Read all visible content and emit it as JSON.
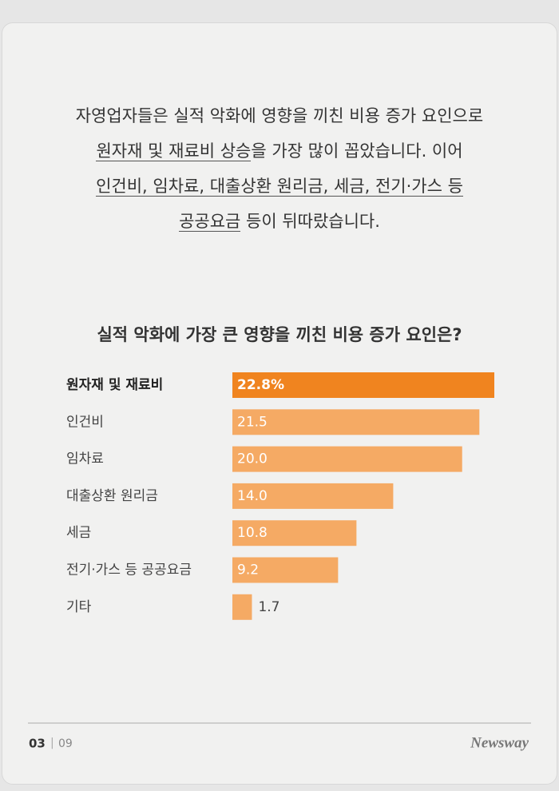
{
  "intro": [
    [
      {
        "text": "자영업자들은 실적 악화에 영향을 끼친 비용 증가 요인으로",
        "underline": false
      }
    ],
    [
      {
        "text": "원자재 및 재료비 상승",
        "underline": true
      },
      {
        "text": "을 가장 많이 꼽았습니다. 이어",
        "underline": false
      }
    ],
    [
      {
        "text": "인건비, 임차료, 대출상환 원리금, 세금, 전기·가스 등",
        "underline": true
      }
    ],
    [
      {
        "text": "공공요금",
        "underline": true
      },
      {
        "text": " 등이 뒤따랐습니다.",
        "underline": false
      }
    ]
  ],
  "chart_data": {
    "type": "bar",
    "orientation": "horizontal",
    "title": "실적 악화에 가장 큰 영향을 끼친 비용 증가 요인은?",
    "categories": [
      "원자재 및 재료비",
      "인건비",
      "임차료",
      "대출상환 원리금",
      "세금",
      "전기·가스 등 공공요금",
      "기타"
    ],
    "values": [
      22.8,
      21.5,
      20.0,
      14.0,
      10.8,
      9.2,
      1.7
    ],
    "value_labels": [
      "22.8%",
      "21.5",
      "20.0",
      "14.0",
      "10.8",
      "9.2",
      "1.7"
    ],
    "colors": [
      "#f0841f",
      "#f5aa64",
      "#f5aa64",
      "#f5aa64",
      "#f5aa64",
      "#f5aa64",
      "#f5aa64"
    ],
    "highlight": 0
  },
  "footer": {
    "page": "03",
    "total": "09",
    "logo": "Newsway"
  }
}
